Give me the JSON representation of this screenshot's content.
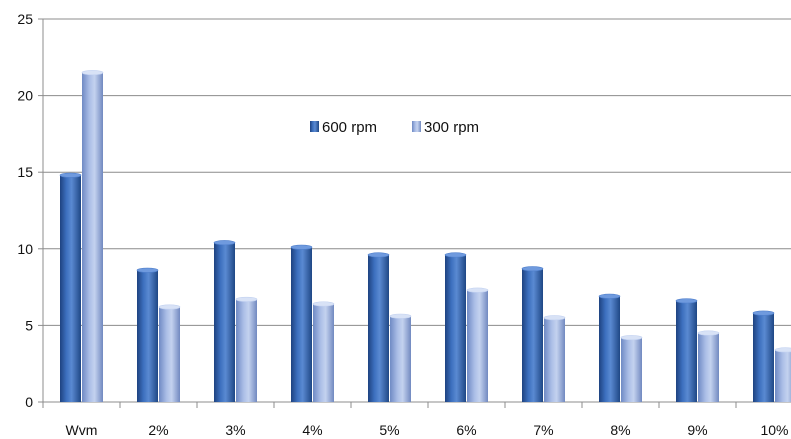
{
  "chart_data": {
    "type": "bar",
    "categories": [
      "Wvm",
      "2%",
      "3%",
      "4%",
      "5%",
      "6%",
      "7%",
      "8%",
      "9%",
      "10%"
    ],
    "series": [
      {
        "name": "600  rpm",
        "values": [
          14.8,
          8.6,
          10.4,
          10.1,
          9.6,
          9.6,
          8.7,
          6.9,
          6.6,
          5.8
        ],
        "color": "#2d5a9e"
      },
      {
        "name": "300 rpm",
        "values": [
          21.5,
          6.2,
          6.7,
          6.4,
          5.6,
          7.3,
          5.5,
          4.2,
          4.5,
          3.4
        ],
        "color": "#8fa8d8"
      }
    ],
    "ylim": [
      0,
      25
    ],
    "yticks": [
      0,
      5,
      10,
      15,
      20,
      25
    ],
    "grid": true,
    "legend_position": "inside-top-center",
    "title": "",
    "xlabel": "",
    "ylabel": ""
  }
}
